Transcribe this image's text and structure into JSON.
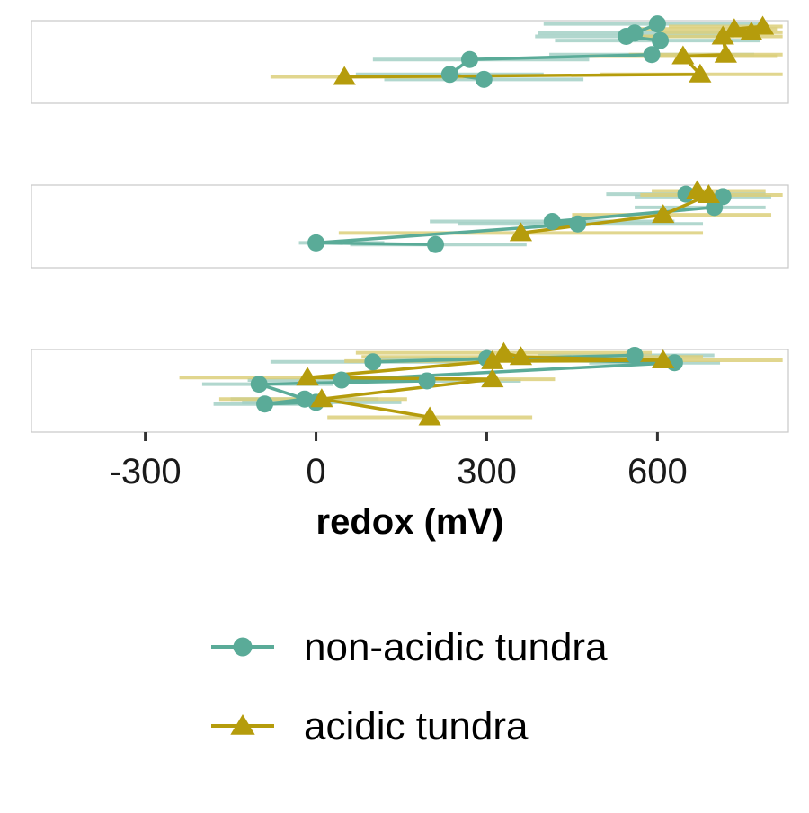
{
  "chart_data": {
    "type": "scatter",
    "xlabel": "redox (mV)",
    "ylabel": "",
    "xlim": [
      -500,
      830
    ],
    "xticks": [
      -300,
      0,
      300,
      600
    ],
    "xtick_labels": [
      "-300",
      "0",
      "300",
      "600"
    ],
    "grid": false,
    "legend_position": "bottom",
    "series": [
      {
        "name": "non-acidic tundra",
        "marker": "circle",
        "color": "#5aab98",
        "error_color": "#a3d0c5"
      },
      {
        "name": "acidic tundra",
        "marker": "triangle",
        "color": "#b59c0c",
        "error_color": "#dccf7a"
      }
    ],
    "panels": [
      {
        "ylim": [
          0,
          10
        ],
        "series": [
          {
            "name": "non-acidic tundra",
            "points": [
              {
                "x": 600,
                "y": 9.6,
                "xmin": 400,
                "xmax": 790
              },
              {
                "x": 560,
                "y": 8.5,
                "xmin": 390,
                "xmax": 740
              },
              {
                "x": 545,
                "y": 8.1,
                "xmin": 385,
                "xmax": 735
              },
              {
                "x": 605,
                "y": 7.6,
                "xmin": 420,
                "xmax": 780
              },
              {
                "x": 590,
                "y": 5.9,
                "xmin": 410,
                "xmax": 770
              },
              {
                "x": 270,
                "y": 5.3,
                "xmin": 100,
                "xmax": 480
              },
              {
                "x": 235,
                "y": 3.5,
                "xmin": 70,
                "xmax": 400
              },
              {
                "x": 295,
                "y": 2.9,
                "xmin": 120,
                "xmax": 470
              }
            ]
          },
          {
            "name": "acidic tundra",
            "points": [
              {
                "x": 785,
                "y": 9.3,
                "xmin": 620,
                "xmax": 820
              },
              {
                "x": 735,
                "y": 9.0,
                "xmin": 560,
                "xmax": 810
              },
              {
                "x": 765,
                "y": 8.6,
                "xmin": 600,
                "xmax": 820
              },
              {
                "x": 715,
                "y": 8.1,
                "xmin": 540,
                "xmax": 820
              },
              {
                "x": 720,
                "y": 5.9,
                "xmin": 550,
                "xmax": 820
              },
              {
                "x": 645,
                "y": 5.7,
                "xmin": 480,
                "xmax": 810
              },
              {
                "x": 675,
                "y": 3.5,
                "xmin": 500,
                "xmax": 820
              },
              {
                "x": 50,
                "y": 3.2,
                "xmin": -80,
                "xmax": 260
              }
            ]
          }
        ]
      },
      {
        "ylim": [
          0,
          10
        ],
        "series": [
          {
            "name": "non-acidic tundra",
            "points": [
              {
                "x": 650,
                "y": 8.9,
                "xmin": 510,
                "xmax": 790
              },
              {
                "x": 715,
                "y": 8.6,
                "xmin": 560,
                "xmax": 800
              },
              {
                "x": 700,
                "y": 7.3,
                "xmin": 560,
                "xmax": 790
              },
              {
                "x": 415,
                "y": 5.6,
                "xmin": 200,
                "xmax": 630
              },
              {
                "x": 460,
                "y": 5.3,
                "xmin": 250,
                "xmax": 680
              },
              {
                "x": 0,
                "y": 3.0,
                "xmin": -30,
                "xmax": 120
              },
              {
                "x": 210,
                "y": 2.8,
                "xmin": 60,
                "xmax": 370
              }
            ]
          },
          {
            "name": "acidic tundra",
            "points": [
              {
                "x": 670,
                "y": 9.3,
                "xmin": 590,
                "xmax": 790
              },
              {
                "x": 690,
                "y": 8.8,
                "xmin": 570,
                "xmax": 820
              },
              {
                "x": 610,
                "y": 6.4,
                "xmin": 450,
                "xmax": 800
              },
              {
                "x": 360,
                "y": 4.2,
                "xmin": 40,
                "xmax": 680
              }
            ]
          }
        ]
      },
      {
        "ylim": [
          0,
          10
        ],
        "series": [
          {
            "name": "non-acidic tundra",
            "points": [
              {
                "x": 560,
                "y": 9.3,
                "xmin": 390,
                "xmax": 700
              },
              {
                "x": 100,
                "y": 8.5,
                "xmin": -80,
                "xmax": 270
              },
              {
                "x": 300,
                "y": 8.9,
                "xmin": 110,
                "xmax": 490
              },
              {
                "x": 630,
                "y": 8.4,
                "xmin": 480,
                "xmax": 710
              },
              {
                "x": 45,
                "y": 6.3,
                "xmin": -120,
                "xmax": 210
              },
              {
                "x": 195,
                "y": 6.2,
                "xmin": 40,
                "xmax": 360
              },
              {
                "x": -100,
                "y": 5.8,
                "xmin": -200,
                "xmax": 30
              },
              {
                "x": -20,
                "y": 4.0,
                "xmin": -150,
                "xmax": 110
              },
              {
                "x": -90,
                "y": 3.4,
                "xmin": -180,
                "xmax": 30
              },
              {
                "x": 0,
                "y": 3.6,
                "xmin": -130,
                "xmax": 150
              }
            ]
          },
          {
            "name": "acidic tundra",
            "points": [
              {
                "x": 330,
                "y": 9.6,
                "xmin": 70,
                "xmax": 590
              },
              {
                "x": 360,
                "y": 9.1,
                "xmin": 80,
                "xmax": 680
              },
              {
                "x": 610,
                "y": 8.7,
                "xmin": 420,
                "xmax": 820
              },
              {
                "x": 310,
                "y": 8.6,
                "xmin": 50,
                "xmax": 570
              },
              {
                "x": -15,
                "y": 6.6,
                "xmin": -240,
                "xmax": 200
              },
              {
                "x": 310,
                "y": 6.4,
                "xmin": 80,
                "xmax": 420
              },
              {
                "x": 10,
                "y": 4.0,
                "xmin": -170,
                "xmax": 160
              },
              {
                "x": 200,
                "y": 1.8,
                "xmin": 20,
                "xmax": 380
              }
            ]
          }
        ]
      }
    ]
  }
}
